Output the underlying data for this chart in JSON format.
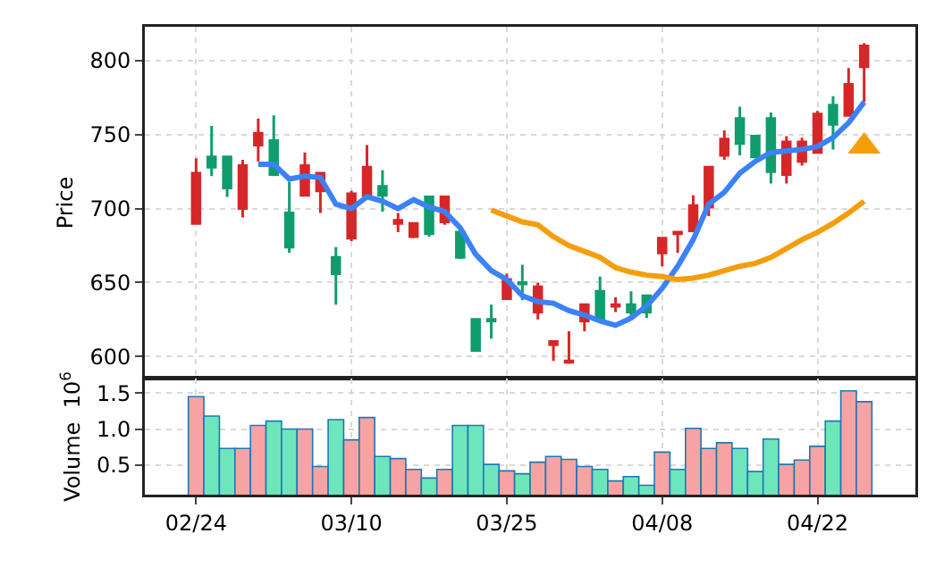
{
  "chart_data": [
    {
      "type": "candlestick",
      "ylabel": "Price",
      "categories": [
        null,
        null,
        null,
        null,
        null,
        null,
        null,
        null,
        null,
        null,
        null,
        null,
        null,
        null,
        null,
        null,
        null,
        null,
        null,
        null,
        null,
        null,
        null,
        null,
        null,
        null,
        null,
        null,
        null,
        null,
        null,
        null,
        null,
        null,
        null,
        null,
        null,
        null,
        null,
        null,
        null,
        null,
        null,
        null
      ],
      "ohlc": [
        [
          690,
          734,
          690,
          724
        ],
        [
          735,
          756,
          722,
          728
        ],
        [
          735,
          735,
          708,
          714
        ],
        [
          700,
          733,
          694,
          729
        ],
        [
          743,
          761,
          732,
          751
        ],
        [
          746,
          763,
          722,
          723
        ],
        [
          697,
          718,
          670,
          674
        ],
        [
          709,
          738,
          709,
          729
        ],
        [
          712,
          724,
          697,
          724
        ],
        [
          667,
          674,
          635,
          656
        ],
        [
          680,
          712,
          678,
          710
        ],
        [
          709,
          743,
          709,
          728
        ],
        [
          715,
          726,
          698,
          709
        ],
        [
          690,
          697,
          684,
          692
        ],
        [
          681,
          690,
          680,
          690
        ],
        [
          708,
          708,
          681,
          683
        ],
        [
          691,
          708,
          689,
          708
        ],
        [
          684,
          684,
          666,
          667
        ],
        [
          625,
          625,
          604,
          604
        ],
        [
          625,
          635,
          612,
          624
        ],
        [
          639,
          656,
          639,
          652
        ],
        [
          650,
          662,
          638,
          649
        ],
        [
          630,
          650,
          625,
          647
        ],
        [
          608,
          610,
          597,
          610
        ],
        [
          596,
          617,
          595,
          597
        ],
        [
          624,
          635,
          617,
          635
        ],
        [
          644,
          654,
          625,
          625
        ],
        [
          634,
          640,
          630,
          635
        ],
        [
          635,
          644,
          626,
          630
        ],
        [
          641,
          641,
          626,
          630
        ],
        [
          670,
          680,
          661,
          680
        ],
        [
          683,
          684,
          670,
          684
        ],
        [
          685,
          709,
          685,
          702
        ],
        [
          701,
          728,
          695,
          728
        ],
        [
          736,
          753,
          733,
          747
        ],
        [
          761,
          769,
          736,
          744
        ],
        [
          749,
          749,
          735,
          735
        ],
        [
          761,
          765,
          717,
          725
        ],
        [
          723,
          749,
          717,
          745
        ],
        [
          732,
          748,
          729,
          745
        ],
        [
          738,
          766,
          738,
          764
        ],
        [
          770,
          776,
          740,
          757
        ],
        [
          763,
          795,
          763,
          784
        ],
        [
          796,
          812,
          772,
          810
        ]
      ],
      "colors": [
        "#d62728",
        "#0f9d6e",
        "#0f9d6e",
        "#d62728",
        "#d62728",
        "#0f9d6e",
        "#0f9d6e",
        "#d62728",
        "#d62728",
        "#0f9d6e",
        "#d62728",
        "#d62728",
        "#0f9d6e",
        "#d62728",
        "#d62728",
        "#0f9d6e",
        "#d62728",
        "#0f9d6e",
        "#0f9d6e",
        "#0f9d6e",
        "#d62728",
        "#0f9d6e",
        "#d62728",
        "#d62728",
        "#d62728",
        "#d62728",
        "#0f9d6e",
        "#d62728",
        "#0f9d6e",
        "#0f9d6e",
        "#d62728",
        "#d62728",
        "#d62728",
        "#d62728",
        "#d62728",
        "#0f9d6e",
        "#0f9d6e",
        "#0f9d6e",
        "#d62728",
        "#d62728",
        "#d62728",
        "#0f9d6e",
        "#d62728",
        "#d62728"
      ],
      "series": [
        {
          "type": "line",
          "color": "#3b82f6",
          "values": [
            null,
            null,
            null,
            null,
            730,
            730,
            720,
            722,
            721,
            703,
            700,
            708,
            705,
            700,
            706,
            701,
            698,
            687,
            669,
            658,
            652,
            641,
            637,
            636,
            631,
            628,
            624,
            621,
            626,
            634,
            646,
            661,
            679,
            703,
            711,
            724,
            732,
            738,
            739,
            740,
            742,
            748,
            758,
            772
          ]
        },
        {
          "type": "line",
          "color": "#f59e0b",
          "values": [
            null,
            null,
            null,
            null,
            null,
            null,
            null,
            null,
            null,
            null,
            null,
            null,
            null,
            null,
            null,
            null,
            null,
            null,
            null,
            699,
            695,
            691,
            689,
            681,
            675,
            671,
            667,
            660,
            657,
            655,
            654,
            652,
            653,
            655,
            658,
            661,
            663,
            667,
            673,
            679,
            684,
            690,
            697,
            705
          ]
        },
        {
          "type": "scatter",
          "marker": "triangle",
          "color": "#f59e0b",
          "values": [
            null,
            null,
            null,
            null,
            null,
            null,
            null,
            null,
            null,
            null,
            null,
            null,
            null,
            null,
            null,
            null,
            null,
            null,
            null,
            null,
            null,
            null,
            null,
            null,
            null,
            null,
            null,
            null,
            null,
            null,
            null,
            null,
            null,
            null,
            null,
            null,
            null,
            null,
            null,
            null,
            null,
            null,
            null,
            742
          ]
        }
      ],
      "ylim": [
        585,
        823
      ],
      "yticks": [
        600,
        650,
        700,
        750,
        800
      ],
      "grid": true,
      "tick_labels": "y"
    },
    {
      "type": "bar",
      "ylabel": "Volume  10$^{6}$",
      "categories": [
        "02/24",
        null,
        null,
        null,
        null,
        null,
        null,
        null,
        null,
        null,
        "03/10",
        null,
        null,
        null,
        null,
        null,
        null,
        null,
        null,
        null,
        "03/25",
        null,
        null,
        null,
        null,
        null,
        null,
        null,
        null,
        null,
        "04/08",
        null,
        null,
        null,
        null,
        null,
        null,
        null,
        null,
        null,
        "04/22",
        null,
        null,
        null
      ],
      "values": [
        1.45,
        1.18,
        0.73,
        0.73,
        1.05,
        1.11,
        1.0,
        1.0,
        0.48,
        1.13,
        0.85,
        1.16,
        0.62,
        0.59,
        0.44,
        0.32,
        0.44,
        1.05,
        1.05,
        0.51,
        0.42,
        0.38,
        0.54,
        0.62,
        0.58,
        0.48,
        0.44,
        0.28,
        0.34,
        0.22,
        0.68,
        0.44,
        1.01,
        0.73,
        0.81,
        0.73,
        0.41,
        0.86,
        0.51,
        0.57,
        0.76,
        1.11,
        1.53,
        1.38
      ],
      "colors": [
        "#f7a3a3",
        "#6ee6bb",
        "#6ee6bb",
        "#f7a3a3",
        "#f7a3a3",
        "#6ee6bb",
        "#6ee6bb",
        "#f7a3a3",
        "#f7a3a3",
        "#6ee6bb",
        "#f7a3a3",
        "#f7a3a3",
        "#6ee6bb",
        "#f7a3a3",
        "#f7a3a3",
        "#6ee6bb",
        "#f7a3a3",
        "#6ee6bb",
        "#6ee6bb",
        "#6ee6bb",
        "#f7a3a3",
        "#6ee6bb",
        "#f7a3a3",
        "#f7a3a3",
        "#f7a3a3",
        "#f7a3a3",
        "#6ee6bb",
        "#f7a3a3",
        "#6ee6bb",
        "#6ee6bb",
        "#f7a3a3",
        "#6ee6bb",
        "#f7a3a3",
        "#f7a3a3",
        "#f7a3a3",
        "#6ee6bb",
        "#6ee6bb",
        "#6ee6bb",
        "#f7a3a3",
        "#f7a3a3",
        "#f7a3a3",
        "#6ee6bb",
        "#f7a3a3",
        "#f7a3a3"
      ],
      "ylim": [
        0.09,
        1.7
      ],
      "yticks": [
        0.5,
        {
          "value": 1,
          "label": "1.0"
        },
        1.5
      ],
      "grid": true
    }
  ]
}
